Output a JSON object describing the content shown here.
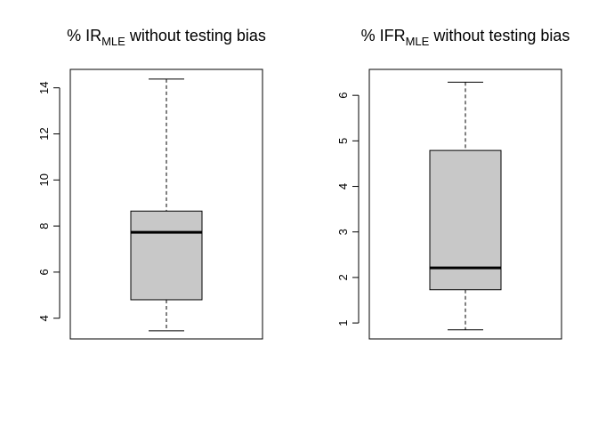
{
  "chart_data": [
    {
      "type": "box",
      "title": {
        "prefix": "% IR",
        "subscript": "MLE",
        "suffix": " without testing bias"
      },
      "ylim": [
        3.1,
        14.8
      ],
      "yticks": [
        4,
        6,
        8,
        10,
        12,
        14
      ],
      "ytick_labels": [
        "4",
        "6",
        "8",
        "10",
        "12",
        "14"
      ],
      "box": {
        "whisker_low": 3.45,
        "q1": 4.8,
        "median": 7.73,
        "q3": 8.65,
        "whisker_high": 14.38
      },
      "fill_color": "#c8c8c8"
    },
    {
      "type": "box",
      "title": {
        "prefix": "% IFR",
        "subscript": "MLE",
        "suffix": " without testing bias"
      },
      "ylim": [
        0.65,
        6.57
      ],
      "yticks": [
        1,
        2,
        3,
        4,
        5,
        6
      ],
      "ytick_labels": [
        "1",
        "2",
        "3",
        "4",
        "5",
        "6"
      ],
      "box": {
        "whisker_low": 0.85,
        "q1": 1.73,
        "median": 2.21,
        "q3": 4.79,
        "whisker_high": 6.29
      },
      "fill_color": "#c8c8c8"
    }
  ]
}
